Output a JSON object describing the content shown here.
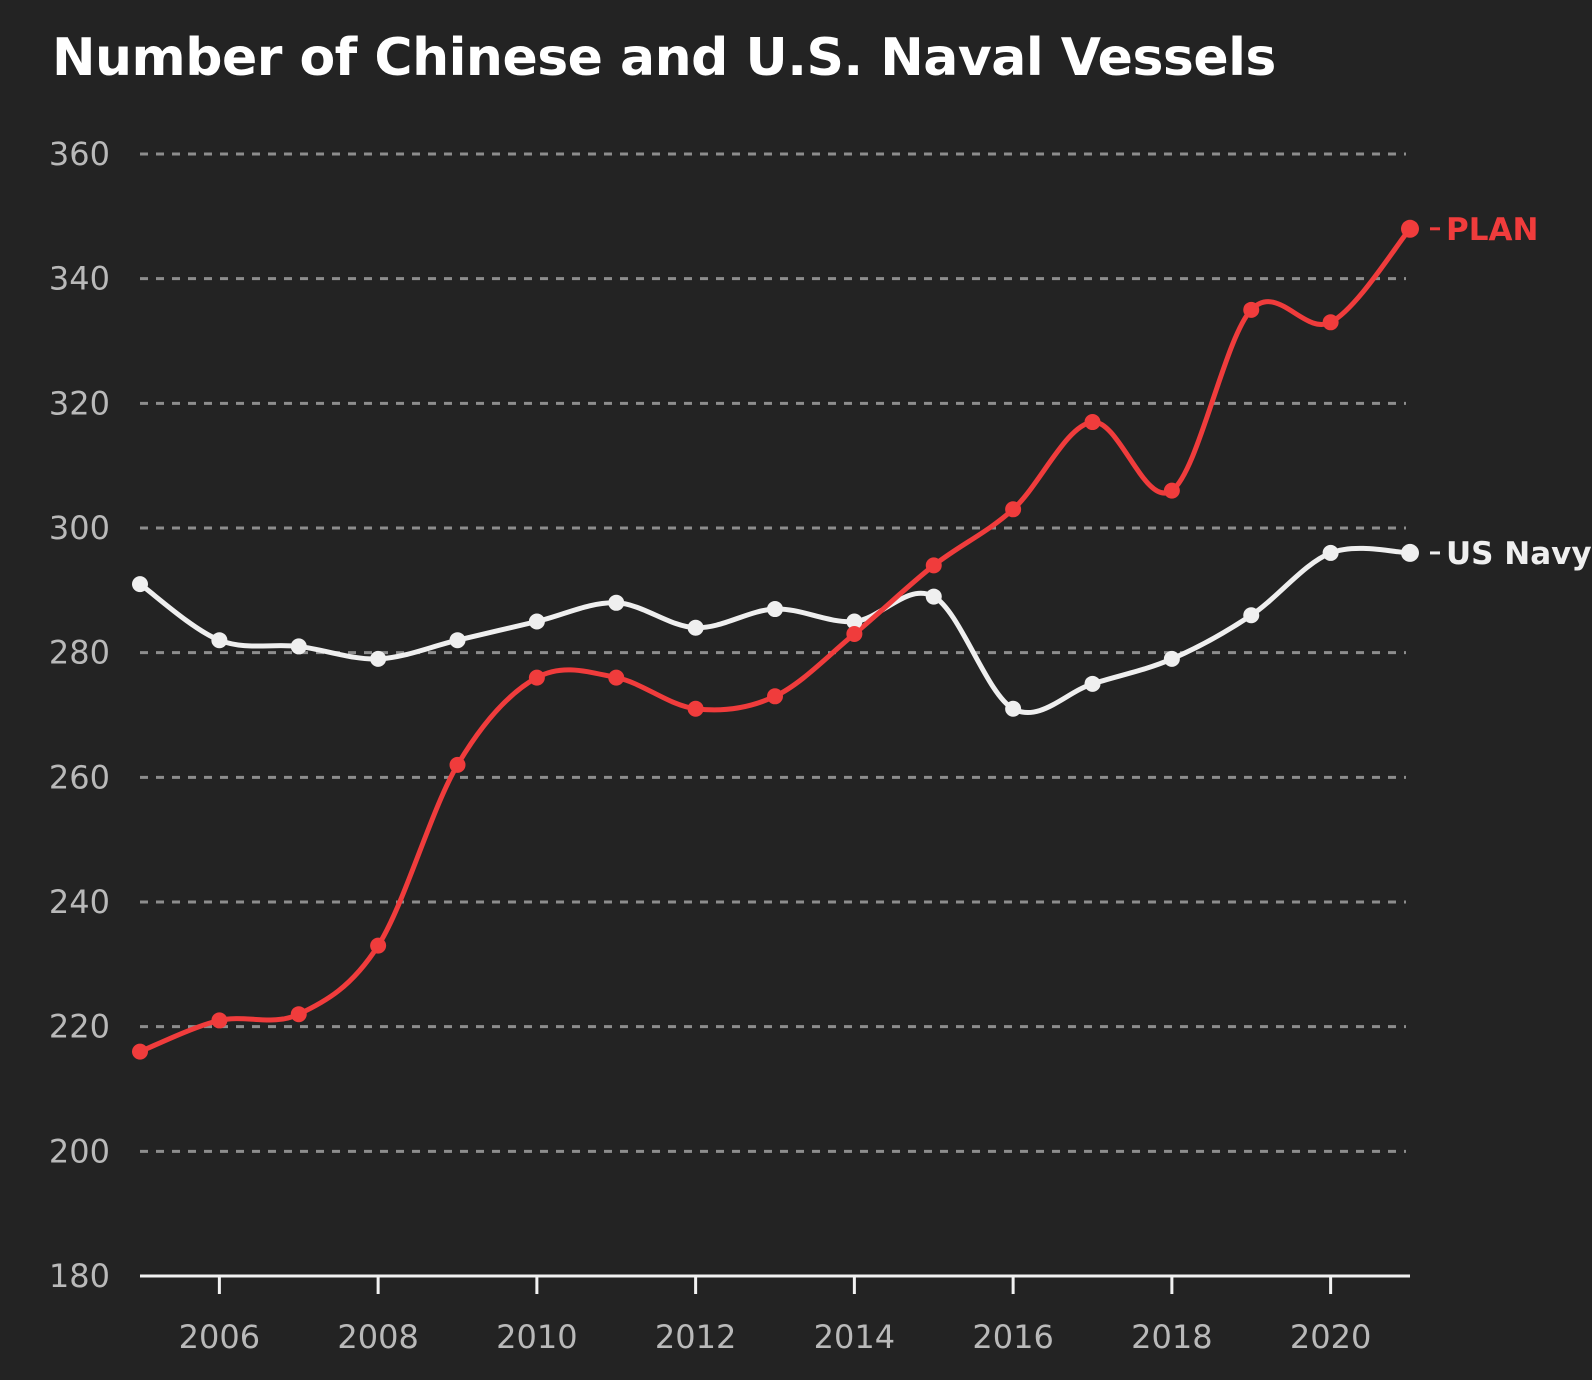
{
  "chart_data": {
    "type": "line",
    "title": "Number of Chinese and U.S. Naval Vessels",
    "xlabel": "",
    "ylabel": "",
    "x": [
      2005,
      2006,
      2007,
      2008,
      2009,
      2010,
      2011,
      2012,
      2013,
      2014,
      2015,
      2016,
      2017,
      2018,
      2019,
      2020,
      2021
    ],
    "xlim": [
      2005,
      2021
    ],
    "ylim": [
      180,
      360
    ],
    "x_ticks": [
      2006,
      2008,
      2010,
      2012,
      2014,
      2016,
      2018,
      2020
    ],
    "x_tick_labels": [
      "2006",
      "2008",
      "2010",
      "2012",
      "2014",
      "2016",
      "2018",
      "2020"
    ],
    "y_ticks": [
      180,
      200,
      220,
      240,
      260,
      280,
      300,
      320,
      340,
      360
    ],
    "y_tick_labels": [
      "180",
      "200",
      "220",
      "240",
      "260",
      "280",
      "300",
      "320",
      "340",
      "360"
    ],
    "grid": "horizontal dashed",
    "legend": "direct labels at line ends (right)",
    "series": [
      {
        "name": "PLAN",
        "color": "#f03c3c",
        "values": [
          216,
          221,
          222,
          233,
          262,
          276,
          276,
          271,
          273,
          283,
          294,
          303,
          317,
          306,
          335,
          333,
          348
        ]
      },
      {
        "name": "US Navy",
        "color": "#efefef",
        "values": [
          291,
          282,
          281,
          279,
          282,
          285,
          288,
          284,
          287,
          285,
          289,
          271,
          275,
          279,
          286,
          296,
          296
        ]
      }
    ]
  }
}
